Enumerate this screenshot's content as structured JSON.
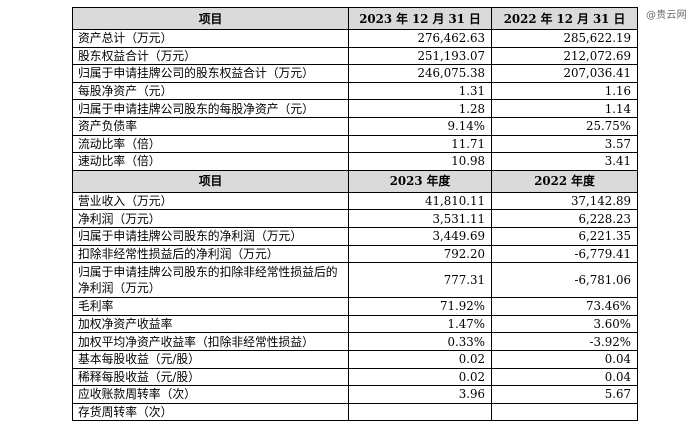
{
  "watermark": "@贵云网",
  "table1": {
    "header": [
      "项目",
      "2023 年 12 月 31 日",
      "2022 年 12 月 31 日"
    ],
    "rows": [
      [
        "资产总计（万元）",
        "276,462.63",
        "285,622.19"
      ],
      [
        "股东权益合计（万元）",
        "251,193.07",
        "212,072.69"
      ],
      [
        "归属于申请挂牌公司的股东权益合计（万元）",
        "246,075.38",
        "207,036.41"
      ],
      [
        "每股净资产（元）",
        "1.31",
        "1.16"
      ],
      [
        "归属于申请挂牌公司股东的每股净资产（元）",
        "1.28",
        "1.14"
      ],
      [
        "资产负债率",
        "9.14%",
        "25.75%"
      ],
      [
        "流动比率（倍）",
        "11.71",
        "3.57"
      ],
      [
        "速动比率（倍）",
        "10.98",
        "3.41"
      ]
    ]
  },
  "table2": {
    "header": [
      "项目",
      "2023 年度",
      "2022 年度"
    ],
    "rows": [
      [
        "营业收入（万元）",
        "41,810.11",
        "37,142.89"
      ],
      [
        "净利润（万元）",
        "3,531.11",
        "6,228.23"
      ],
      [
        "归属于申请挂牌公司股东的净利润（万元）",
        "3,449.69",
        "6,221.35"
      ],
      [
        "扣除非经常性损益后的净利润（万元）",
        "792.20",
        "-6,779.41"
      ],
      [
        "归属于申请挂牌公司股东的扣除非经常性损益后的净利润（万元）",
        "777.31",
        "-6,781.06"
      ],
      [
        "毛利率",
        "71.92%",
        "73.46%"
      ],
      [
        "加权净资产收益率",
        "1.47%",
        "3.60%"
      ],
      [
        "加权平均净资产收益率（扣除非经常性损益）",
        "0.33%",
        "-3.92%"
      ],
      [
        "基本每股收益（元/股）",
        "0.02",
        "0.04"
      ],
      [
        "稀释每股收益（元/股）",
        "0.02",
        "0.04"
      ],
      [
        "应收账款周转率（次）",
        "3.96",
        "5.67"
      ],
      [
        "存货周转率（次）",
        "",
        ""
      ]
    ]
  }
}
